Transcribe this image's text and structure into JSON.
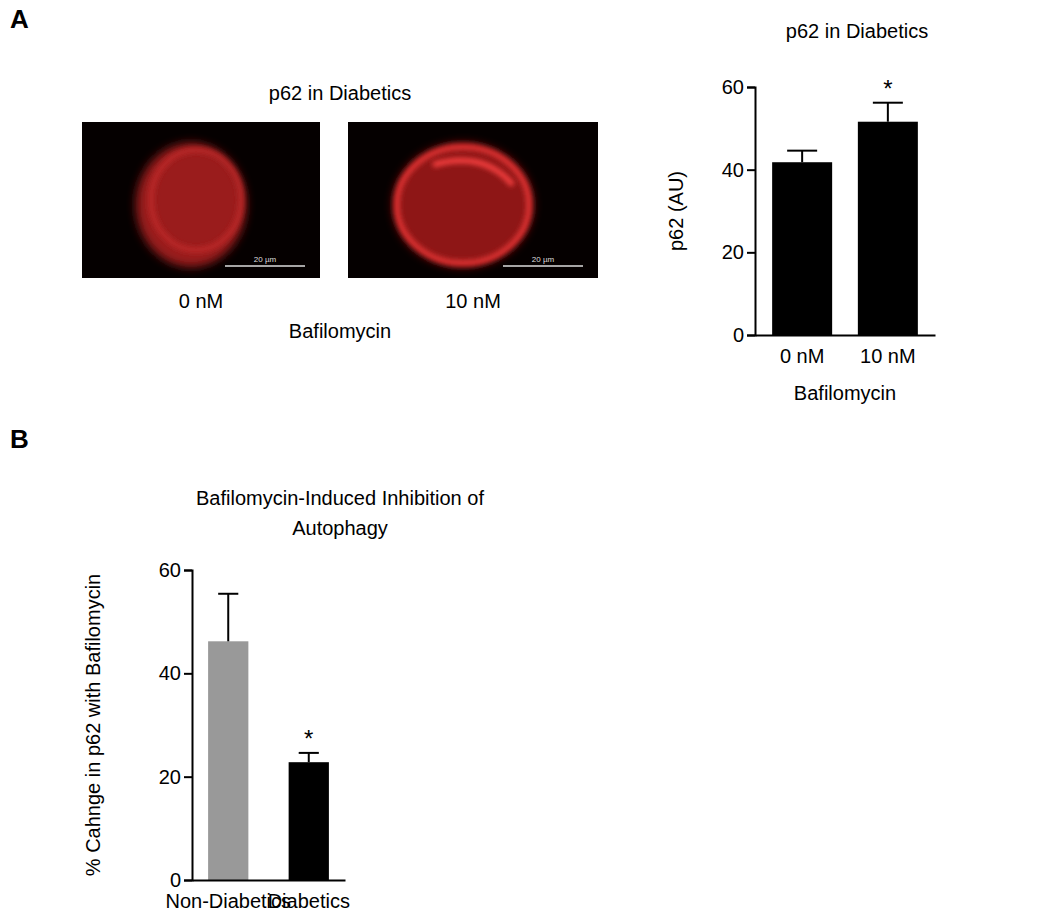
{
  "panel_labels": [
    "A",
    "B"
  ],
  "images": {
    "title": "p62 in Diabetics",
    "xlabel": "Bafilomycin",
    "panels": [
      {
        "label": "0 nM",
        "scale_bar": "20 µm"
      },
      {
        "label": "10 nM",
        "scale_bar": "20 µm"
      }
    ]
  },
  "chart_data": [
    {
      "type": "bar",
      "title": "p62 in Diabetics",
      "xlabel": "Bafilomycin",
      "ylabel": "p62 (AU)",
      "categories": [
        "0 nM",
        "10 nM"
      ],
      "values": [
        41.8,
        51.6
      ],
      "errors": [
        2.8,
        4.6
      ],
      "significance": [
        null,
        "*"
      ],
      "color": "#000000",
      "ylim": [
        0,
        60
      ],
      "yticks": [
        0,
        20,
        40,
        60
      ],
      "grid": false
    },
    {
      "type": "bar",
      "title": "Bafilomycin-Induced Inhibition of Autophagy",
      "ylabel": "% Cahnge in p62 with Bafilomycin",
      "categories": [
        "Non-Diabetics",
        "Diabetics"
      ],
      "values": [
        46.2,
        22.8
      ],
      "errors": [
        9.2,
        1.8
      ],
      "significance": [
        null,
        "*"
      ],
      "colors": [
        "#999999",
        "#000000"
      ],
      "ylim": [
        0,
        60
      ],
      "yticks": [
        0,
        20,
        40,
        60
      ],
      "grid": false
    }
  ]
}
